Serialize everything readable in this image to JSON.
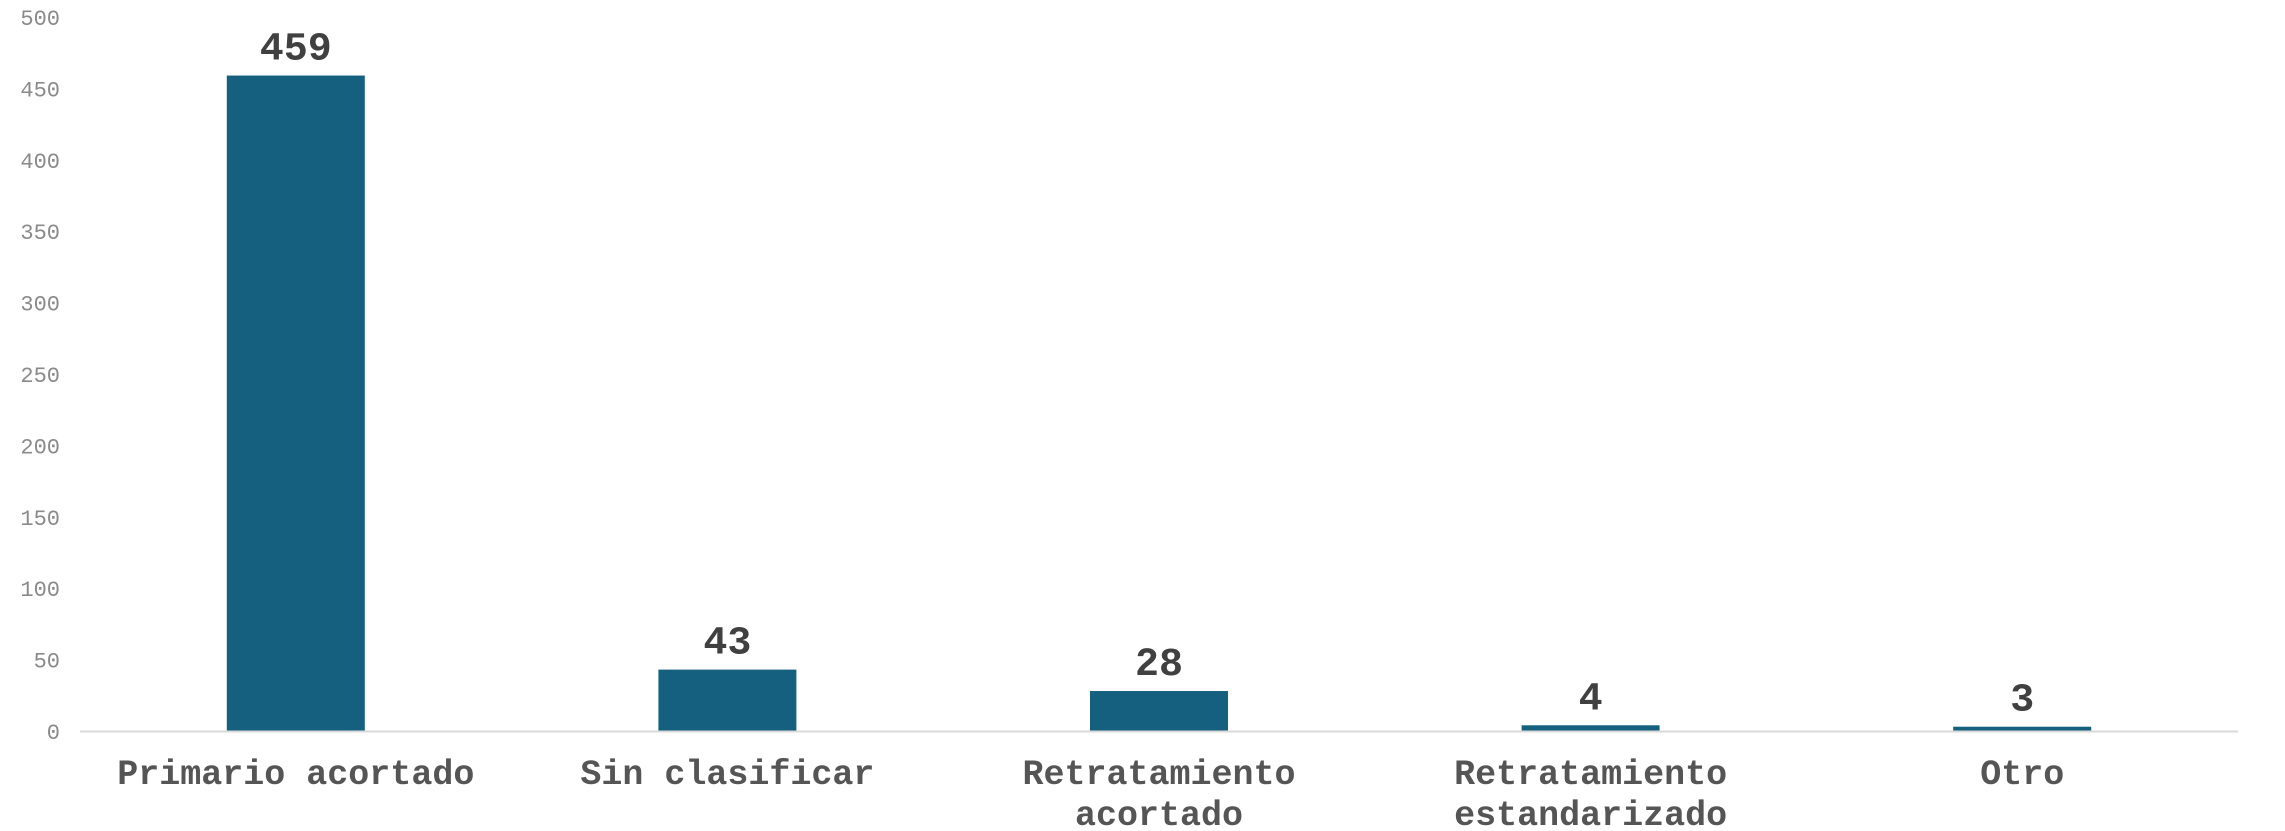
{
  "chart_data": {
    "type": "bar",
    "title": "",
    "xlabel": "",
    "ylabel": "",
    "categories": [
      [
        "Primario acortado"
      ],
      [
        "Sin clasificar"
      ],
      [
        "Retratamiento",
        "acortado"
      ],
      [
        "Retratamiento",
        "estandarizado"
      ],
      [
        "Otro"
      ]
    ],
    "values": [
      459,
      43,
      28,
      4,
      3
    ],
    "data_labels": [
      "459",
      "43",
      "28",
      "4",
      "3"
    ],
    "ylim": [
      0,
      500
    ],
    "yticks": [
      0,
      50,
      100,
      150,
      200,
      250,
      300,
      350,
      400,
      450,
      500
    ],
    "grid": false,
    "legend": "none",
    "bar_color": "#16607f",
    "baseline_color": "#d9d9d9"
  }
}
